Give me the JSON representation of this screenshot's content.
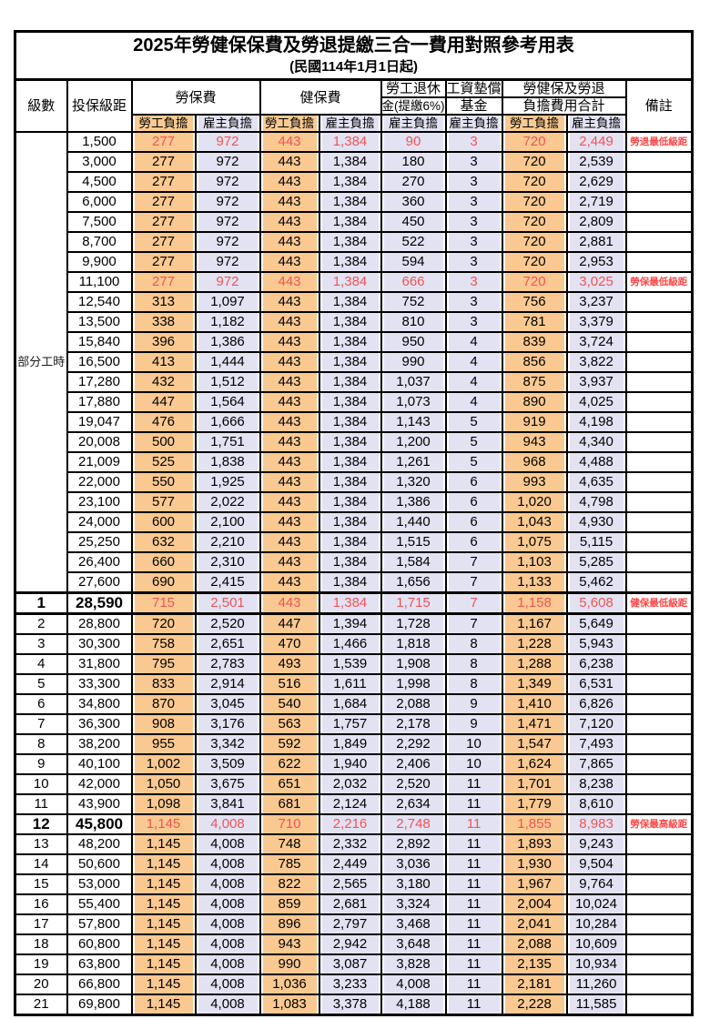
{
  "title": "2025年勞健保保費及勞退提繳三合一費用對照參考用表",
  "subtitle": "(民國114年1月1日起)",
  "colors": {
    "employee_fill": "#F9C991",
    "employer_fill": "#E2E2F3",
    "highlight_red": "#F05454",
    "remark_red": "#FF4646",
    "border": "#000000"
  },
  "header": {
    "level": "級數",
    "bracket": "投保級距",
    "labor_fee": "勞保費",
    "health_fee": "健保費",
    "pension_line1": "勞工退休",
    "pension_line2": "金(提繳6%)",
    "fund_line1": "工資墊償",
    "fund_line2": "基金",
    "total_line1": "勞健保及勞退",
    "total_line2": "負擔費用合計",
    "employee": "勞工負擔",
    "employer": "雇主負擔",
    "remark": "備註"
  },
  "group_label": "部分工時",
  "rows": [
    {
      "level": "",
      "bracket": "1,500",
      "li_emp": "277",
      "li_er": "972",
      "hi_emp": "443",
      "hi_er": "1,384",
      "pension": "90",
      "fund": "3",
      "tot_emp": "720",
      "tot_er": "2,449",
      "remark": "勞退最低級距",
      "red": true,
      "big": false,
      "sep": false
    },
    {
      "level": "",
      "bracket": "3,000",
      "li_emp": "277",
      "li_er": "972",
      "hi_emp": "443",
      "hi_er": "1,384",
      "pension": "180",
      "fund": "3",
      "tot_emp": "720",
      "tot_er": "2,539",
      "remark": "",
      "red": false,
      "big": false,
      "sep": false
    },
    {
      "level": "",
      "bracket": "4,500",
      "li_emp": "277",
      "li_er": "972",
      "hi_emp": "443",
      "hi_er": "1,384",
      "pension": "270",
      "fund": "3",
      "tot_emp": "720",
      "tot_er": "2,629",
      "remark": "",
      "red": false,
      "big": false,
      "sep": false
    },
    {
      "level": "",
      "bracket": "6,000",
      "li_emp": "277",
      "li_er": "972",
      "hi_emp": "443",
      "hi_er": "1,384",
      "pension": "360",
      "fund": "3",
      "tot_emp": "720",
      "tot_er": "2,719",
      "remark": "",
      "red": false,
      "big": false,
      "sep": false
    },
    {
      "level": "",
      "bracket": "7,500",
      "li_emp": "277",
      "li_er": "972",
      "hi_emp": "443",
      "hi_er": "1,384",
      "pension": "450",
      "fund": "3",
      "tot_emp": "720",
      "tot_er": "2,809",
      "remark": "",
      "red": false,
      "big": false,
      "sep": false
    },
    {
      "level": "",
      "bracket": "8,700",
      "li_emp": "277",
      "li_er": "972",
      "hi_emp": "443",
      "hi_er": "1,384",
      "pension": "522",
      "fund": "3",
      "tot_emp": "720",
      "tot_er": "2,881",
      "remark": "",
      "red": false,
      "big": false,
      "sep": false
    },
    {
      "level": "",
      "bracket": "9,900",
      "li_emp": "277",
      "li_er": "972",
      "hi_emp": "443",
      "hi_er": "1,384",
      "pension": "594",
      "fund": "3",
      "tot_emp": "720",
      "tot_er": "2,953",
      "remark": "",
      "red": false,
      "big": false,
      "sep": false
    },
    {
      "level": "",
      "bracket": "11,100",
      "li_emp": "277",
      "li_er": "972",
      "hi_emp": "443",
      "hi_er": "1,384",
      "pension": "666",
      "fund": "3",
      "tot_emp": "720",
      "tot_er": "3,025",
      "remark": "勞保最低級距",
      "red": true,
      "big": false,
      "sep": false
    },
    {
      "level": "",
      "bracket": "12,540",
      "li_emp": "313",
      "li_er": "1,097",
      "hi_emp": "443",
      "hi_er": "1,384",
      "pension": "752",
      "fund": "3",
      "tot_emp": "756",
      "tot_er": "3,237",
      "remark": "",
      "red": false,
      "big": false,
      "sep": false
    },
    {
      "level": "",
      "bracket": "13,500",
      "li_emp": "338",
      "li_er": "1,182",
      "hi_emp": "443",
      "hi_er": "1,384",
      "pension": "810",
      "fund": "3",
      "tot_emp": "781",
      "tot_er": "3,379",
      "remark": "",
      "red": false,
      "big": false,
      "sep": false
    },
    {
      "level": "",
      "bracket": "15,840",
      "li_emp": "396",
      "li_er": "1,386",
      "hi_emp": "443",
      "hi_er": "1,384",
      "pension": "950",
      "fund": "4",
      "tot_emp": "839",
      "tot_er": "3,724",
      "remark": "",
      "red": false,
      "big": false,
      "sep": false
    },
    {
      "level": "",
      "bracket": "16,500",
      "li_emp": "413",
      "li_er": "1,444",
      "hi_emp": "443",
      "hi_er": "1,384",
      "pension": "990",
      "fund": "4",
      "tot_emp": "856",
      "tot_er": "3,822",
      "remark": "",
      "red": false,
      "big": false,
      "sep": false
    },
    {
      "level": "",
      "bracket": "17,280",
      "li_emp": "432",
      "li_er": "1,512",
      "hi_emp": "443",
      "hi_er": "1,384",
      "pension": "1,037",
      "fund": "4",
      "tot_emp": "875",
      "tot_er": "3,937",
      "remark": "",
      "red": false,
      "big": false,
      "sep": false
    },
    {
      "level": "",
      "bracket": "17,880",
      "li_emp": "447",
      "li_er": "1,564",
      "hi_emp": "443",
      "hi_er": "1,384",
      "pension": "1,073",
      "fund": "4",
      "tot_emp": "890",
      "tot_er": "4,025",
      "remark": "",
      "red": false,
      "big": false,
      "sep": false
    },
    {
      "level": "",
      "bracket": "19,047",
      "li_emp": "476",
      "li_er": "1,666",
      "hi_emp": "443",
      "hi_er": "1,384",
      "pension": "1,143",
      "fund": "5",
      "tot_emp": "919",
      "tot_er": "4,198",
      "remark": "",
      "red": false,
      "big": false,
      "sep": false
    },
    {
      "level": "",
      "bracket": "20,008",
      "li_emp": "500",
      "li_er": "1,751",
      "hi_emp": "443",
      "hi_er": "1,384",
      "pension": "1,200",
      "fund": "5",
      "tot_emp": "943",
      "tot_er": "4,340",
      "remark": "",
      "red": false,
      "big": false,
      "sep": false
    },
    {
      "level": "",
      "bracket": "21,009",
      "li_emp": "525",
      "li_er": "1,838",
      "hi_emp": "443",
      "hi_er": "1,384",
      "pension": "1,261",
      "fund": "5",
      "tot_emp": "968",
      "tot_er": "4,488",
      "remark": "",
      "red": false,
      "big": false,
      "sep": false
    },
    {
      "level": "",
      "bracket": "22,000",
      "li_emp": "550",
      "li_er": "1,925",
      "hi_emp": "443",
      "hi_er": "1,384",
      "pension": "1,320",
      "fund": "6",
      "tot_emp": "993",
      "tot_er": "4,635",
      "remark": "",
      "red": false,
      "big": false,
      "sep": false
    },
    {
      "level": "",
      "bracket": "23,100",
      "li_emp": "577",
      "li_er": "2,022",
      "hi_emp": "443",
      "hi_er": "1,384",
      "pension": "1,386",
      "fund": "6",
      "tot_emp": "1,020",
      "tot_er": "4,798",
      "remark": "",
      "red": false,
      "big": false,
      "sep": false
    },
    {
      "level": "",
      "bracket": "24,000",
      "li_emp": "600",
      "li_er": "2,100",
      "hi_emp": "443",
      "hi_er": "1,384",
      "pension": "1,440",
      "fund": "6",
      "tot_emp": "1,043",
      "tot_er": "4,930",
      "remark": "",
      "red": false,
      "big": false,
      "sep": false
    },
    {
      "level": "",
      "bracket": "25,250",
      "li_emp": "632",
      "li_er": "2,210",
      "hi_emp": "443",
      "hi_er": "1,384",
      "pension": "1,515",
      "fund": "6",
      "tot_emp": "1,075",
      "tot_er": "5,115",
      "remark": "",
      "red": false,
      "big": false,
      "sep": false
    },
    {
      "level": "",
      "bracket": "26,400",
      "li_emp": "660",
      "li_er": "2,310",
      "hi_emp": "443",
      "hi_er": "1,384",
      "pension": "1,584",
      "fund": "7",
      "tot_emp": "1,103",
      "tot_er": "5,285",
      "remark": "",
      "red": false,
      "big": false,
      "sep": false
    },
    {
      "level": "",
      "bracket": "27,600",
      "li_emp": "690",
      "li_er": "2,415",
      "hi_emp": "443",
      "hi_er": "1,384",
      "pension": "1,656",
      "fund": "7",
      "tot_emp": "1,133",
      "tot_er": "5,462",
      "remark": "",
      "red": false,
      "big": false,
      "sep": false
    },
    {
      "level": "1",
      "bracket": "28,590",
      "li_emp": "715",
      "li_er": "2,501",
      "hi_emp": "443",
      "hi_er": "1,384",
      "pension": "1,715",
      "fund": "7",
      "tot_emp": "1,158",
      "tot_er": "5,608",
      "remark": "健保最低級距",
      "red": true,
      "big": true,
      "sep": true
    },
    {
      "level": "2",
      "bracket": "28,800",
      "li_emp": "720",
      "li_er": "2,520",
      "hi_emp": "447",
      "hi_er": "1,394",
      "pension": "1,728",
      "fund": "7",
      "tot_emp": "1,167",
      "tot_er": "5,649",
      "remark": "",
      "red": false,
      "big": false,
      "sep": false
    },
    {
      "level": "3",
      "bracket": "30,300",
      "li_emp": "758",
      "li_er": "2,651",
      "hi_emp": "470",
      "hi_er": "1,466",
      "pension": "1,818",
      "fund": "8",
      "tot_emp": "1,228",
      "tot_er": "5,943",
      "remark": "",
      "red": false,
      "big": false,
      "sep": false
    },
    {
      "level": "4",
      "bracket": "31,800",
      "li_emp": "795",
      "li_er": "2,783",
      "hi_emp": "493",
      "hi_er": "1,539",
      "pension": "1,908",
      "fund": "8",
      "tot_emp": "1,288",
      "tot_er": "6,238",
      "remark": "",
      "red": false,
      "big": false,
      "sep": false
    },
    {
      "level": "5",
      "bracket": "33,300",
      "li_emp": "833",
      "li_er": "2,914",
      "hi_emp": "516",
      "hi_er": "1,611",
      "pension": "1,998",
      "fund": "8",
      "tot_emp": "1,349",
      "tot_er": "6,531",
      "remark": "",
      "red": false,
      "big": false,
      "sep": false
    },
    {
      "level": "6",
      "bracket": "34,800",
      "li_emp": "870",
      "li_er": "3,045",
      "hi_emp": "540",
      "hi_er": "1,684",
      "pension": "2,088",
      "fund": "9",
      "tot_emp": "1,410",
      "tot_er": "6,826",
      "remark": "",
      "red": false,
      "big": false,
      "sep": false
    },
    {
      "level": "7",
      "bracket": "36,300",
      "li_emp": "908",
      "li_er": "3,176",
      "hi_emp": "563",
      "hi_er": "1,757",
      "pension": "2,178",
      "fund": "9",
      "tot_emp": "1,471",
      "tot_er": "7,120",
      "remark": "",
      "red": false,
      "big": false,
      "sep": false
    },
    {
      "level": "8",
      "bracket": "38,200",
      "li_emp": "955",
      "li_er": "3,342",
      "hi_emp": "592",
      "hi_er": "1,849",
      "pension": "2,292",
      "fund": "10",
      "tot_emp": "1,547",
      "tot_er": "7,493",
      "remark": "",
      "red": false,
      "big": false,
      "sep": false
    },
    {
      "level": "9",
      "bracket": "40,100",
      "li_emp": "1,002",
      "li_er": "3,509",
      "hi_emp": "622",
      "hi_er": "1,940",
      "pension": "2,406",
      "fund": "10",
      "tot_emp": "1,624",
      "tot_er": "7,865",
      "remark": "",
      "red": false,
      "big": false,
      "sep": false
    },
    {
      "level": "10",
      "bracket": "42,000",
      "li_emp": "1,050",
      "li_er": "3,675",
      "hi_emp": "651",
      "hi_er": "2,032",
      "pension": "2,520",
      "fund": "11",
      "tot_emp": "1,701",
      "tot_er": "8,238",
      "remark": "",
      "red": false,
      "big": false,
      "sep": false
    },
    {
      "level": "11",
      "bracket": "43,900",
      "li_emp": "1,098",
      "li_er": "3,841",
      "hi_emp": "681",
      "hi_er": "2,124",
      "pension": "2,634",
      "fund": "11",
      "tot_emp": "1,779",
      "tot_er": "8,610",
      "remark": "",
      "red": false,
      "big": false,
      "sep": false
    },
    {
      "level": "12",
      "bracket": "45,800",
      "li_emp": "1,145",
      "li_er": "4,008",
      "hi_emp": "710",
      "hi_er": "2,216",
      "pension": "2,748",
      "fund": "11",
      "tot_emp": "1,855",
      "tot_er": "8,983",
      "remark": "勞保最高級距",
      "red": true,
      "big": true,
      "sep": false
    },
    {
      "level": "13",
      "bracket": "48,200",
      "li_emp": "1,145",
      "li_er": "4,008",
      "hi_emp": "748",
      "hi_er": "2,332",
      "pension": "2,892",
      "fund": "11",
      "tot_emp": "1,893",
      "tot_er": "9,243",
      "remark": "",
      "red": false,
      "big": false,
      "sep": false
    },
    {
      "level": "14",
      "bracket": "50,600",
      "li_emp": "1,145",
      "li_er": "4,008",
      "hi_emp": "785",
      "hi_er": "2,449",
      "pension": "3,036",
      "fund": "11",
      "tot_emp": "1,930",
      "tot_er": "9,504",
      "remark": "",
      "red": false,
      "big": false,
      "sep": false
    },
    {
      "level": "15",
      "bracket": "53,000",
      "li_emp": "1,145",
      "li_er": "4,008",
      "hi_emp": "822",
      "hi_er": "2,565",
      "pension": "3,180",
      "fund": "11",
      "tot_emp": "1,967",
      "tot_er": "9,764",
      "remark": "",
      "red": false,
      "big": false,
      "sep": false
    },
    {
      "level": "16",
      "bracket": "55,400",
      "li_emp": "1,145",
      "li_er": "4,008",
      "hi_emp": "859",
      "hi_er": "2,681",
      "pension": "3,324",
      "fund": "11",
      "tot_emp": "2,004",
      "tot_er": "10,024",
      "remark": "",
      "red": false,
      "big": false,
      "sep": false
    },
    {
      "level": "17",
      "bracket": "57,800",
      "li_emp": "1,145",
      "li_er": "4,008",
      "hi_emp": "896",
      "hi_er": "2,797",
      "pension": "3,468",
      "fund": "11",
      "tot_emp": "2,041",
      "tot_er": "10,284",
      "remark": "",
      "red": false,
      "big": false,
      "sep": false
    },
    {
      "level": "18",
      "bracket": "60,800",
      "li_emp": "1,145",
      "li_er": "4,008",
      "hi_emp": "943",
      "hi_er": "2,942",
      "pension": "3,648",
      "fund": "11",
      "tot_emp": "2,088",
      "tot_er": "10,609",
      "remark": "",
      "red": false,
      "big": false,
      "sep": false
    },
    {
      "level": "19",
      "bracket": "63,800",
      "li_emp": "1,145",
      "li_er": "4,008",
      "hi_emp": "990",
      "hi_er": "3,087",
      "pension": "3,828",
      "fund": "11",
      "tot_emp": "2,135",
      "tot_er": "10,934",
      "remark": "",
      "red": false,
      "big": false,
      "sep": false
    },
    {
      "level": "20",
      "bracket": "66,800",
      "li_emp": "1,145",
      "li_er": "4,008",
      "hi_emp": "1,036",
      "hi_er": "3,233",
      "pension": "4,008",
      "fund": "11",
      "tot_emp": "2,181",
      "tot_er": "11,260",
      "remark": "",
      "red": false,
      "big": false,
      "sep": false
    },
    {
      "level": "21",
      "bracket": "69,800",
      "li_emp": "1,145",
      "li_er": "4,008",
      "hi_emp": "1,083",
      "hi_er": "3,378",
      "pension": "4,188",
      "fund": "11",
      "tot_emp": "2,228",
      "tot_er": "11,585",
      "remark": "",
      "red": false,
      "big": false,
      "sep": false
    }
  ]
}
